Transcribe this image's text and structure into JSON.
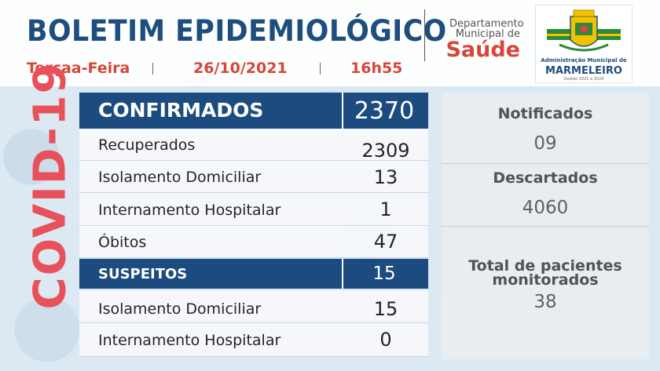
{
  "header": {
    "title": "BOLETIM EPIDEMIOLÓGICO",
    "weekday": "Terçaa-Feira",
    "date": "26/10/2021",
    "time": "16h55"
  },
  "department": {
    "line1": "Departamento",
    "line2": "Municipal de",
    "name": "Saúde"
  },
  "logo": {
    "line1": "Administração Municipal de",
    "line2": "MARMELEIRO",
    "line3": "Gestão 2021 a 2024"
  },
  "side_label": "COVID-19",
  "confirmados": {
    "label": "CONFIRMADOS",
    "value": "2370",
    "items": [
      {
        "label": "Recuperados",
        "value": "2309"
      },
      {
        "label": "Isolamento Domiciliar",
        "value": "13"
      },
      {
        "label": "Internamento Hospitalar",
        "value": "1"
      },
      {
        "label": "Óbitos",
        "value": "47"
      }
    ]
  },
  "suspeitos": {
    "label": "SUSPEITOS",
    "value": "15",
    "items": [
      {
        "label": "Isolamento Domiciliar",
        "value": "15"
      },
      {
        "label": "Internamento Hospitalar",
        "value": "0"
      }
    ]
  },
  "right_panel": {
    "notificados_label": "Notificados",
    "notificados_value": "09",
    "descartados_label": "Descartados",
    "descartados_value": "4060",
    "total_label_1": "Total de pacientes",
    "total_label_2": "monitorados",
    "total_value": "38"
  },
  "colors": {
    "navy": "#1c4b80",
    "red": "#d5463b",
    "covid_red": "#e8505a"
  }
}
